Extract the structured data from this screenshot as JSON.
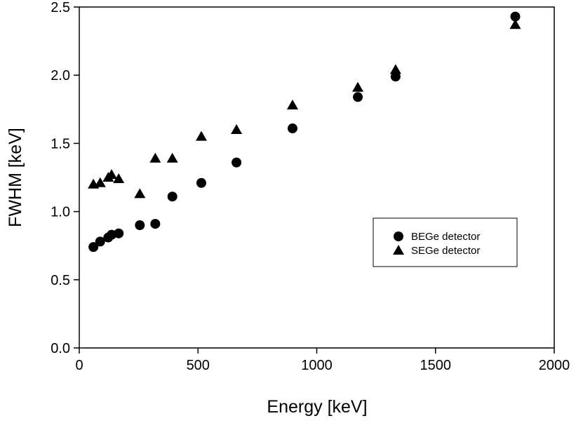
{
  "chart_data": {
    "type": "scatter",
    "xlabel": "Energy [keV]",
    "ylabel": "FWHM [keV]",
    "xlim": [
      0,
      2000
    ],
    "ylim": [
      0,
      2.5
    ],
    "xticks": [
      0,
      500,
      1000,
      1500,
      2000
    ],
    "yticks": [
      0.0,
      0.5,
      1.0,
      1.5,
      2.0,
      2.5
    ],
    "xtick_labels": [
      "0",
      "500",
      "1000",
      "1500",
      "2000"
    ],
    "ytick_labels": [
      "0.0",
      "0.5",
      "1.0",
      "1.5",
      "2.0",
      "2.5"
    ],
    "grid": false,
    "legend_position": "right-middle",
    "series": [
      {
        "name": "BEGe detector",
        "marker": "circle",
        "color": "#000000",
        "x": [
          59.5,
          88,
          122,
          136,
          166,
          255,
          320,
          392,
          514,
          662,
          898,
          1173,
          1332,
          1836
        ],
        "y": [
          0.74,
          0.78,
          0.81,
          0.83,
          0.84,
          0.9,
          0.91,
          1.11,
          1.21,
          1.36,
          1.61,
          1.84,
          1.99,
          2.43
        ]
      },
      {
        "name": "SEGe detector",
        "marker": "triangle",
        "color": "#000000",
        "x": [
          59.5,
          88,
          122,
          136,
          166,
          255,
          320,
          392,
          514,
          662,
          898,
          1173,
          1332,
          1836
        ],
        "y": [
          1.2,
          1.21,
          1.25,
          1.27,
          1.24,
          1.13,
          1.39,
          1.39,
          1.55,
          1.6,
          1.78,
          1.91,
          2.04,
          2.37
        ]
      }
    ]
  }
}
